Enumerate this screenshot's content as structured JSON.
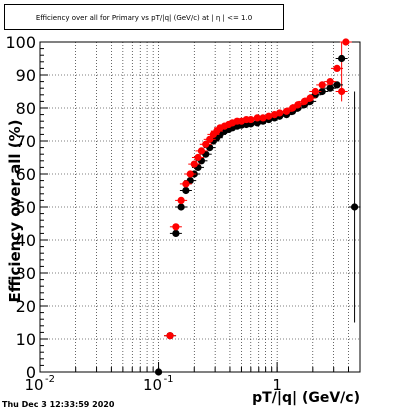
{
  "timestamp": "Thu Dec  3 12:33:59 2020",
  "chart_data": {
    "type": "scatter",
    "title": "Efficiency over all for Primary vs pT/|q| (GeV/c) at | η | <= 1.0",
    "xlabel": "pT/|q| (GeV/c)",
    "ylabel": "Efficiency over all (%)",
    "xscale": "log",
    "xlim": [
      0.01,
      5.0
    ],
    "ylim": [
      0,
      100
    ],
    "grid": true,
    "x_ticks": [
      {
        "value": 0.01,
        "label": "10",
        "exp": "-2"
      },
      {
        "value": 0.1,
        "label": "10",
        "exp": "-1"
      },
      {
        "value": 1,
        "label": "1",
        "exp": ""
      }
    ],
    "y_ticks": [
      0,
      10,
      20,
      30,
      40,
      50,
      60,
      70,
      80,
      90,
      100
    ],
    "colors": {
      "series_1": "#000000",
      "series_2": "#ff0000"
    },
    "series": [
      {
        "color": "#000000",
        "points": [
          [
            0.1,
            0
          ],
          [
            0.125,
            11
          ],
          [
            0.14,
            42
          ],
          [
            0.155,
            50
          ],
          [
            0.17,
            55
          ],
          [
            0.185,
            58
          ],
          [
            0.2,
            60
          ],
          [
            0.215,
            62
          ],
          [
            0.23,
            64
          ],
          [
            0.25,
            66
          ],
          [
            0.27,
            68
          ],
          [
            0.29,
            70
          ],
          [
            0.31,
            71
          ],
          [
            0.33,
            72
          ],
          [
            0.36,
            73
          ],
          [
            0.39,
            73.5
          ],
          [
            0.42,
            74
          ],
          [
            0.46,
            74.5
          ],
          [
            0.5,
            74.8
          ],
          [
            0.55,
            75
          ],
          [
            0.6,
            75.2
          ],
          [
            0.68,
            75.5
          ],
          [
            0.76,
            76
          ],
          [
            0.85,
            76.5
          ],
          [
            0.95,
            77
          ],
          [
            1.05,
            77.5
          ],
          [
            1.2,
            78
          ],
          [
            1.35,
            79
          ],
          [
            1.5,
            80
          ],
          [
            1.7,
            81
          ],
          [
            1.9,
            82
          ],
          [
            2.1,
            84
          ],
          [
            2.4,
            85
          ],
          [
            2.8,
            86
          ],
          [
            3.2,
            87
          ],
          [
            3.5,
            95
          ],
          [
            4.5,
            50
          ]
        ]
      },
      {
        "color": "#ff0000",
        "points": [
          [
            0.125,
            11
          ],
          [
            0.14,
            44
          ],
          [
            0.155,
            52
          ],
          [
            0.17,
            57
          ],
          [
            0.185,
            60
          ],
          [
            0.2,
            63
          ],
          [
            0.215,
            65
          ],
          [
            0.23,
            67
          ],
          [
            0.25,
            69
          ],
          [
            0.27,
            70.5
          ],
          [
            0.29,
            72
          ],
          [
            0.31,
            73
          ],
          [
            0.33,
            74
          ],
          [
            0.36,
            74.5
          ],
          [
            0.39,
            75
          ],
          [
            0.42,
            75.5
          ],
          [
            0.46,
            76
          ],
          [
            0.5,
            76
          ],
          [
            0.55,
            76.5
          ],
          [
            0.6,
            76.5
          ],
          [
            0.68,
            77
          ],
          [
            0.76,
            77
          ],
          [
            0.85,
            77.5
          ],
          [
            0.95,
            78
          ],
          [
            1.05,
            78.5
          ],
          [
            1.2,
            79
          ],
          [
            1.35,
            80
          ],
          [
            1.5,
            81
          ],
          [
            1.7,
            82
          ],
          [
            1.9,
            83
          ],
          [
            2.1,
            85
          ],
          [
            2.4,
            87
          ],
          [
            2.8,
            88
          ],
          [
            3.2,
            92
          ],
          [
            3.5,
            85
          ],
          [
            3.8,
            100
          ]
        ]
      }
    ]
  }
}
